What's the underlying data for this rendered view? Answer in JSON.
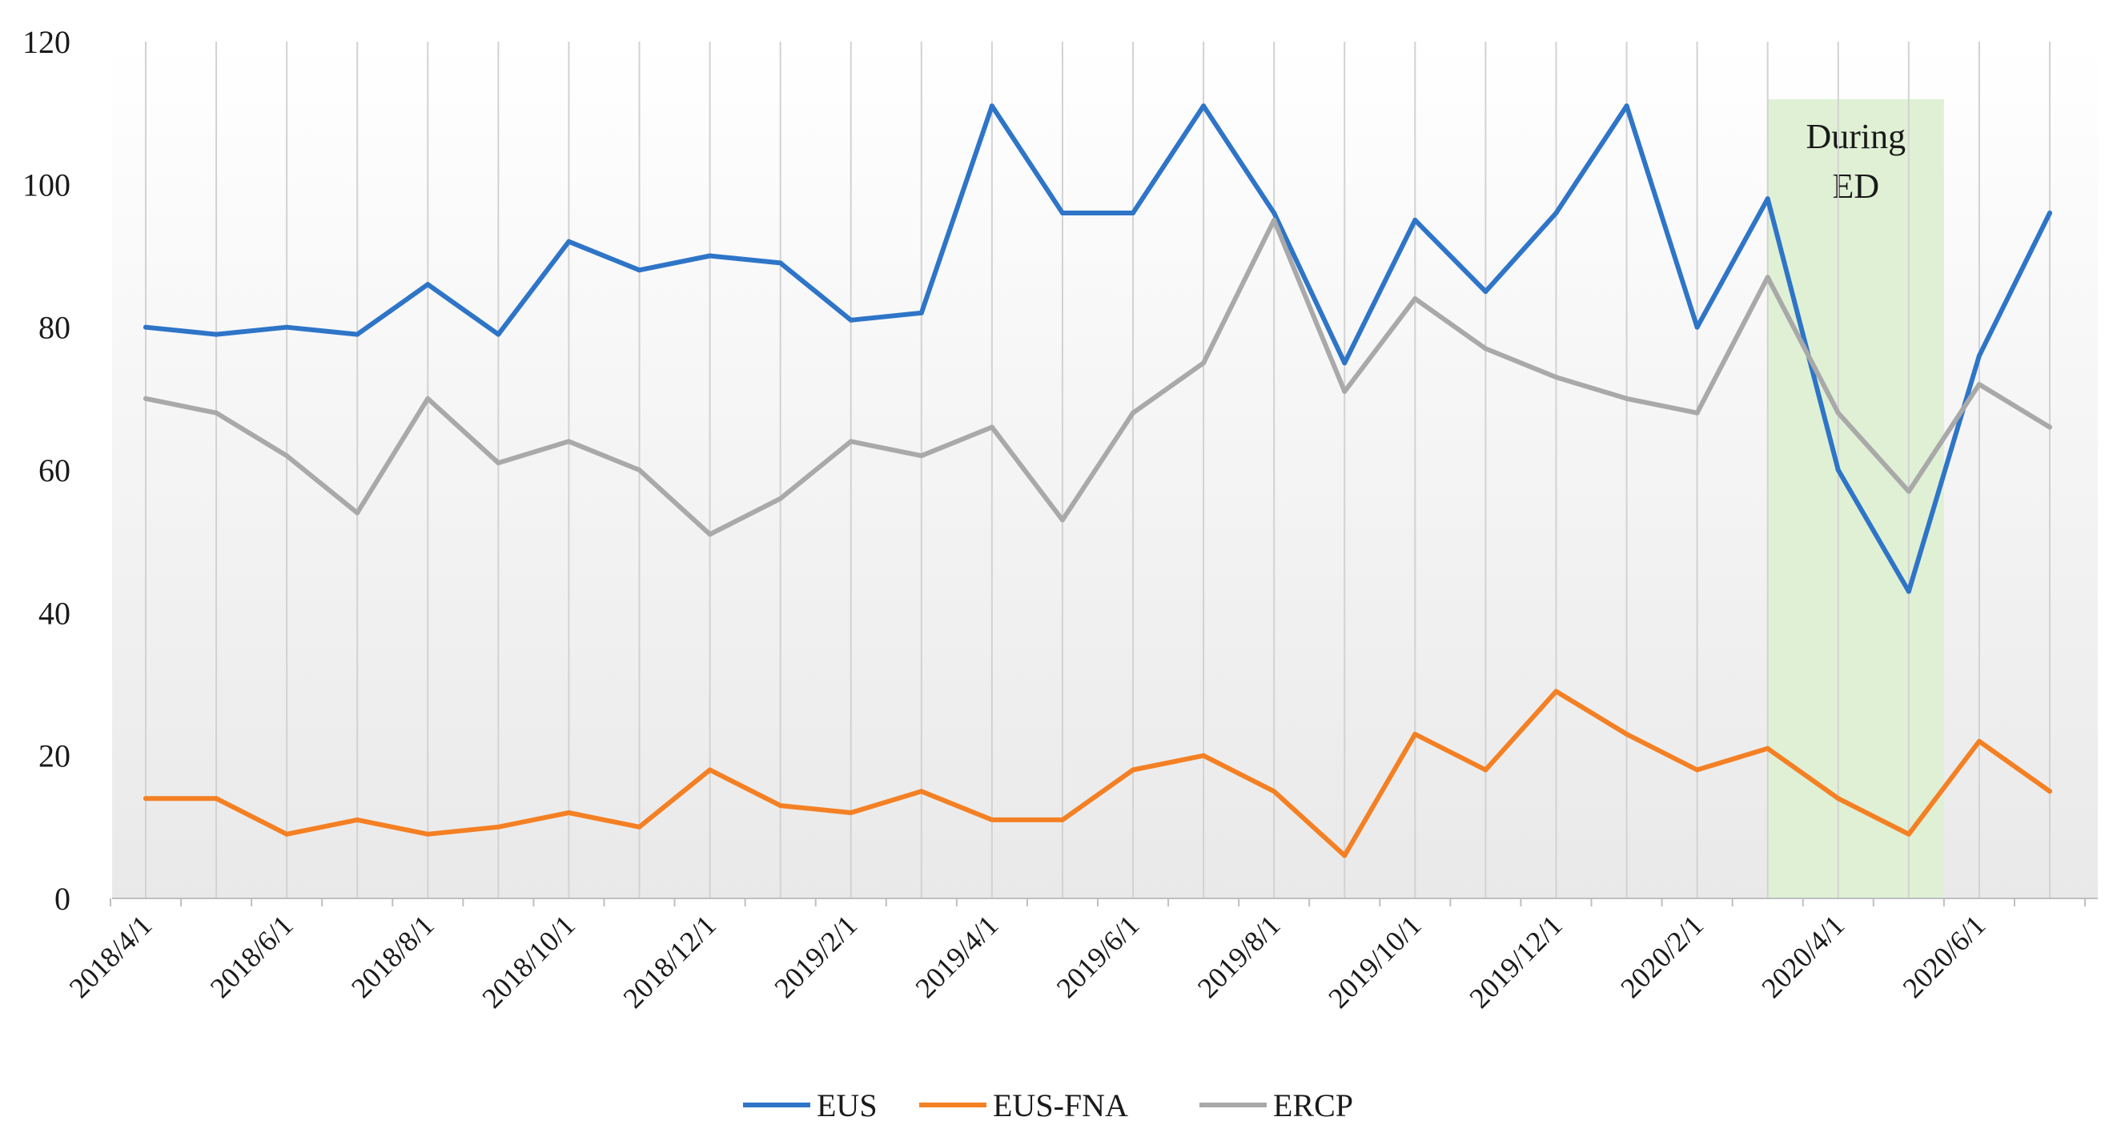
{
  "chart_data": {
    "type": "line",
    "title": "",
    "xlabel": "",
    "ylabel": "",
    "ylim": [
      0,
      120
    ],
    "yticks": [
      0,
      20,
      40,
      60,
      80,
      100,
      120
    ],
    "grid": "vertical lines at each data point",
    "legend_position": "bottom",
    "x": [
      "2018/4/1",
      "2018/5/1",
      "2018/6/1",
      "2018/7/1",
      "2018/8/1",
      "2018/9/1",
      "2018/10/1",
      "2018/11/1",
      "2018/12/1",
      "2019/1/1",
      "2019/2/1",
      "2019/3/1",
      "2019/4/1",
      "2019/5/1",
      "2019/6/1",
      "2019/7/1",
      "2019/8/1",
      "2019/9/1",
      "2019/10/1",
      "2019/11/1",
      "2019/12/1",
      "2020/1/1",
      "2020/2/1",
      "2020/3/1",
      "2020/4/1",
      "2020/5/1",
      "2020/6/1",
      "2020/7/1"
    ],
    "xtick_labels": [
      "2018/4/1",
      "2018/6/1",
      "2018/8/1",
      "2018/10/1",
      "2018/12/1",
      "2019/2/1",
      "2019/4/1",
      "2019/6/1",
      "2019/8/1",
      "2019/10/1",
      "2019/12/1",
      "2020/2/1",
      "2020/4/1",
      "2020/6/1"
    ],
    "series": [
      {
        "name": "EUS",
        "color": "#2e75c8",
        "values": [
          80,
          79,
          80,
          79,
          86,
          79,
          92,
          88,
          90,
          89,
          81,
          82,
          111,
          96,
          96,
          111,
          96,
          75,
          95,
          85,
          96,
          111,
          80,
          98,
          60,
          43,
          76,
          96
        ]
      },
      {
        "name": "EUS-FNA",
        "color": "#f48024",
        "values": [
          14,
          14,
          9,
          11,
          9,
          10,
          12,
          10,
          18,
          13,
          12,
          15,
          11,
          11,
          18,
          20,
          15,
          6,
          23,
          18,
          29,
          23,
          18,
          21,
          14,
          9,
          22,
          15
        ]
      },
      {
        "name": "ERCP",
        "color": "#a9a9a9",
        "values": [
          70,
          68,
          62,
          54,
          70,
          61,
          64,
          60,
          51,
          56,
          64,
          62,
          66,
          53,
          68,
          75,
          95,
          71,
          84,
          77,
          73,
          70,
          68,
          87,
          68,
          57,
          72,
          66
        ]
      }
    ],
    "annotations": [
      {
        "text_lines": [
          "During",
          "ED"
        ],
        "x_start": "2020/3/1",
        "x_end": "2020/5/1",
        "color": "#dff0d4"
      }
    ]
  }
}
